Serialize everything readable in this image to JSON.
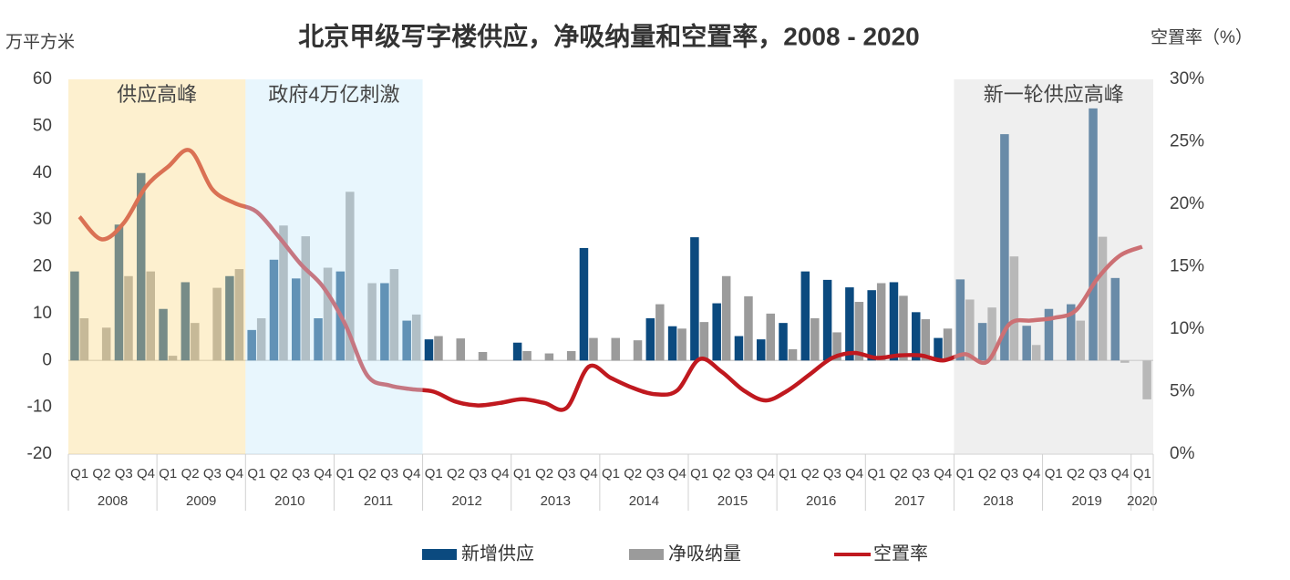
{
  "chart_data": {
    "type": "bar",
    "title": "北京甲级写字楼供应，净吸纳量和空置率，2008 - 2020",
    "y_label": "万平方米",
    "y2_label": "空置率（%）",
    "category_groups": [
      {
        "label": "2008",
        "categories": [
          "Q1",
          "Q2",
          "Q3",
          "Q4"
        ]
      },
      {
        "label": "2009",
        "categories": [
          "Q1",
          "Q2",
          "Q3",
          "Q4"
        ]
      },
      {
        "label": "2010",
        "categories": [
          "Q1",
          "Q2",
          "Q3",
          "Q4"
        ]
      },
      {
        "label": "2011",
        "categories": [
          "Q1",
          "Q2",
          "Q3",
          "Q4"
        ]
      },
      {
        "label": "2012",
        "categories": [
          "Q1",
          "Q2",
          "Q3",
          "Q4"
        ]
      },
      {
        "label": "2013",
        "categories": [
          "Q1",
          "Q2",
          "Q3",
          "Q4"
        ]
      },
      {
        "label": "2014",
        "categories": [
          "Q1",
          "Q2",
          "Q3",
          "Q4"
        ]
      },
      {
        "label": "2015",
        "categories": [
          "Q1",
          "Q2",
          "Q3",
          "Q4"
        ]
      },
      {
        "label": "2016",
        "categories": [
          "Q1",
          "Q2",
          "Q3",
          "Q4"
        ]
      },
      {
        "label": "2017",
        "categories": [
          "Q1",
          "Q2",
          "Q3",
          "Q4"
        ]
      },
      {
        "label": "2018",
        "categories": [
          "Q1",
          "Q2",
          "Q3",
          "Q4"
        ]
      },
      {
        "label": "2019",
        "categories": [
          "Q1",
          "Q2",
          "Q3",
          "Q4"
        ]
      },
      {
        "label": "2020",
        "categories": [
          "Q1"
        ]
      }
    ],
    "series": [
      {
        "name": "新增供应",
        "type": "bar",
        "color": "#0b4a7f",
        "values": [
          19,
          0,
          29,
          40,
          11,
          16.7,
          0,
          18,
          6.5,
          21.5,
          17.5,
          9,
          19,
          0,
          16.5,
          8.5,
          4.5,
          0,
          0,
          0,
          3.8,
          0,
          0,
          24,
          0,
          0,
          9,
          7.3,
          26.3,
          12.2,
          5.2,
          4.5,
          8,
          19,
          17.2,
          15.6,
          15,
          16.7,
          10.3,
          4.8,
          17.3,
          8,
          48.3,
          7.4,
          11,
          12,
          53.8,
          17.6,
          0
        ]
      },
      {
        "name": "净吸纳量",
        "type": "bar",
        "color": "#9b9b9b",
        "values": [
          9,
          7,
          18,
          19,
          1,
          8,
          15.5,
          19.5,
          9,
          28.8,
          26.5,
          19.8,
          36,
          16.5,
          19.5,
          9.8,
          5.2,
          4.7,
          1.8,
          0,
          2,
          1.5,
          2,
          4.8,
          4.8,
          4.3,
          12,
          6.8,
          8.2,
          18,
          13.7,
          10,
          2.4,
          9,
          6,
          12.5,
          16.5,
          13.8,
          8.8,
          6.8,
          13,
          11.3,
          22.2,
          3.3,
          0,
          8.5,
          26.4,
          -0.5,
          -8.3
        ]
      },
      {
        "name": "空置率",
        "type": "line",
        "axis": "y2",
        "color": "#c0191f",
        "values": [
          19,
          17.2,
          18.5,
          21.4,
          23,
          24.3,
          21.2,
          20.1,
          19.4,
          17.4,
          15.2,
          13.4,
          10.4,
          6.3,
          5.5,
          5.2,
          5,
          4.2,
          3.9,
          4.1,
          4.4,
          4.1,
          3.7,
          7,
          6.1,
          5.3,
          4.8,
          5.1,
          7.6,
          6.6,
          5.1,
          4.3,
          5.1,
          6.4,
          7.7,
          8.1,
          7.7,
          7.9,
          7.9,
          7.5,
          8,
          7.4,
          10.4,
          10.7,
          10.9,
          11.5,
          14.1,
          15.9,
          16.6
        ]
      }
    ],
    "ylim": [
      -20,
      60
    ],
    "yticks": [
      -20,
      -10,
      0,
      10,
      20,
      30,
      40,
      50,
      60
    ],
    "y2lim": [
      0,
      30
    ],
    "y2ticks": [
      {
        "value": 0,
        "label": "0%"
      },
      {
        "value": 5,
        "label": "5%"
      },
      {
        "value": 10,
        "label": "10%"
      },
      {
        "value": 15,
        "label": "15%"
      },
      {
        "value": 20,
        "label": "20%"
      },
      {
        "value": 25,
        "label": "25%"
      },
      {
        "value": 30,
        "label": "30%"
      }
    ],
    "annotations": [
      {
        "text": "供应高峰",
        "years": [
          "2008",
          "2009"
        ],
        "color": "#fbde94"
      },
      {
        "text": "政府4万亿刺激",
        "years": [
          "2010",
          "2011"
        ],
        "color": "#cceafb"
      },
      {
        "text": "新一轮供应高峰",
        "years": [
          "2018",
          "2019",
          "2020"
        ],
        "color": "#dbdbdb"
      }
    ],
    "legend": "bottom"
  }
}
